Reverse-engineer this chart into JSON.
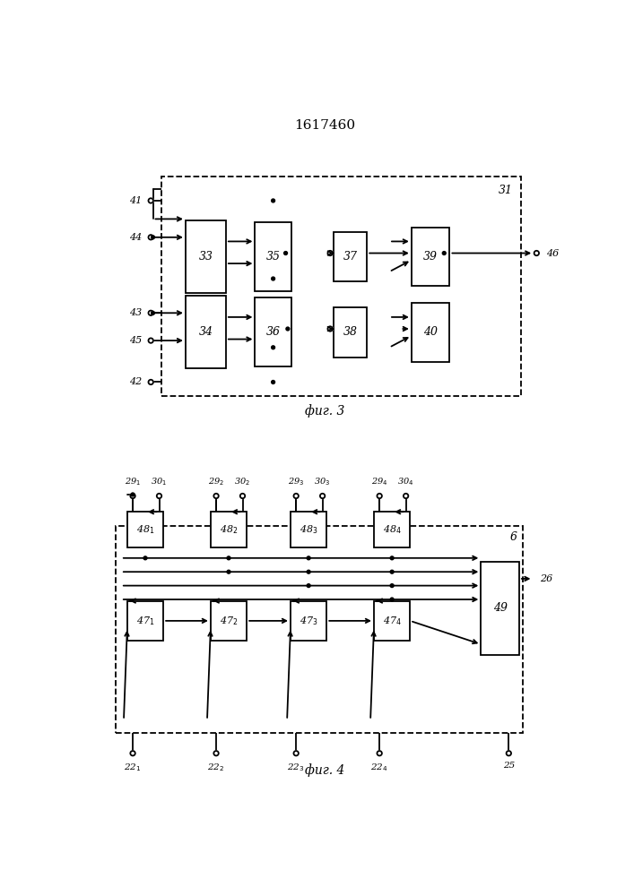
{
  "title": "1617460",
  "fig3_label": "фиг. 3",
  "fig4_label": "фиг. 4",
  "bg_color": "#ffffff",
  "lw": 1.3
}
